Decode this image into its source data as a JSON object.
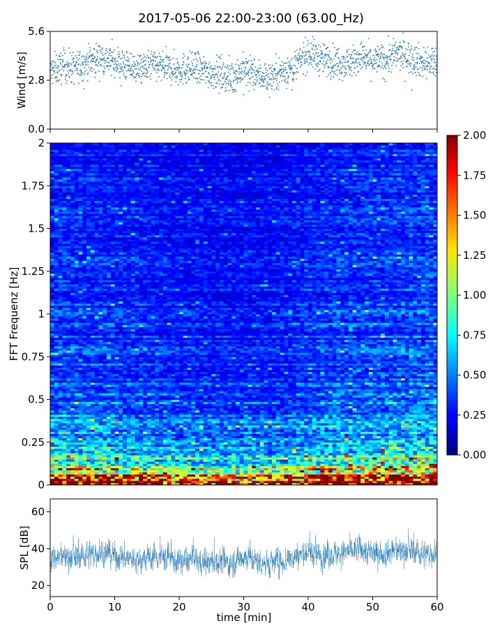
{
  "title": "2017-05-06 22:00-23:00 (63.00_Hz)",
  "chart_data": [
    {
      "type": "scatter",
      "name": "wind-panel",
      "ylabel": "Wind [m/s]",
      "xlim": [
        0,
        60
      ],
      "ylim": [
        0,
        5.6
      ],
      "yticks": [
        0,
        2.8,
        5.6
      ],
      "ytick_labels": [
        "0.0",
        "2.8",
        "5.6"
      ],
      "xticks": [
        0,
        10,
        20,
        30,
        40,
        50,
        60
      ],
      "color": "#1f77b4",
      "trend": {
        "x": [
          0,
          2,
          4,
          6,
          8,
          10,
          12,
          14,
          16,
          18,
          20,
          22,
          24,
          26,
          28,
          30,
          32,
          34,
          36,
          38,
          40,
          42,
          44,
          46,
          48,
          50,
          52,
          54,
          56,
          58,
          60
        ],
        "y": [
          3.3,
          3.6,
          3.5,
          3.9,
          4.1,
          3.9,
          3.6,
          3.4,
          3.7,
          3.5,
          3.4,
          3.5,
          3.3,
          3.2,
          3.0,
          3.4,
          3.1,
          3.0,
          3.3,
          3.6,
          4.4,
          4.0,
          3.9,
          3.8,
          4.1,
          3.9,
          4.0,
          4.3,
          4.1,
          3.8,
          3.8
        ]
      },
      "spread": 0.45,
      "n_points": 1800
    },
    {
      "type": "heatmap",
      "name": "spectrogram",
      "ylabel": "FFT Frequenz [Hz]",
      "xlim": [
        0,
        60
      ],
      "ylim": [
        0,
        2
      ],
      "yticks": [
        0,
        0.25,
        0.5,
        0.75,
        1,
        1.25,
        1.5,
        1.75,
        2
      ],
      "ytick_labels": [
        "0",
        "0.25",
        "0.5",
        "0.75",
        "1",
        "1.25",
        "1.5",
        "1.75",
        "2"
      ],
      "colormap": "jet",
      "vmin": 0,
      "vmax": 2,
      "colorbar_ticks": [
        "0.00",
        "0.25",
        "0.50",
        "0.75",
        "1.00",
        "1.25",
        "1.50",
        "1.75",
        "2.00"
      ],
      "profile": {
        "freq": [
          0,
          0.05,
          0.1,
          0.15,
          0.2,
          0.3,
          0.4,
          0.5,
          0.75,
          1.0,
          1.5,
          2.0
        ],
        "mean": [
          1.7,
          1.45,
          1.05,
          0.8,
          0.62,
          0.5,
          0.42,
          0.37,
          0.33,
          0.3,
          0.27,
          0.25
        ]
      }
    },
    {
      "type": "line",
      "name": "spl-panel",
      "ylabel": "SPL [dB]",
      "xlabel": "time [min]",
      "xlim": [
        0,
        60
      ],
      "ylim": [
        14,
        67
      ],
      "yticks": [
        20,
        40,
        60
      ],
      "ytick_labels": [
        "20",
        "40",
        "60"
      ],
      "xticks": [
        0,
        10,
        20,
        30,
        40,
        50,
        60
      ],
      "xtick_labels": [
        "0",
        "10",
        "20",
        "30",
        "40",
        "50",
        "60"
      ],
      "color": "#1f77b4",
      "trend": {
        "x": [
          0,
          2,
          4,
          6,
          8,
          10,
          12,
          14,
          16,
          18,
          20,
          22,
          24,
          26,
          28,
          30,
          32,
          34,
          36,
          38,
          40,
          42,
          44,
          46,
          48,
          50,
          52,
          54,
          56,
          58,
          60
        ],
        "y": [
          34,
          36,
          35,
          37,
          38,
          36,
          35,
          33,
          36,
          35,
          33,
          34,
          32,
          33,
          32,
          36,
          33,
          32,
          33,
          36,
          38,
          36,
          37,
          38,
          40,
          37,
          38,
          39,
          39,
          37,
          38
        ]
      },
      "spread": 5,
      "n_points": 2400
    }
  ]
}
